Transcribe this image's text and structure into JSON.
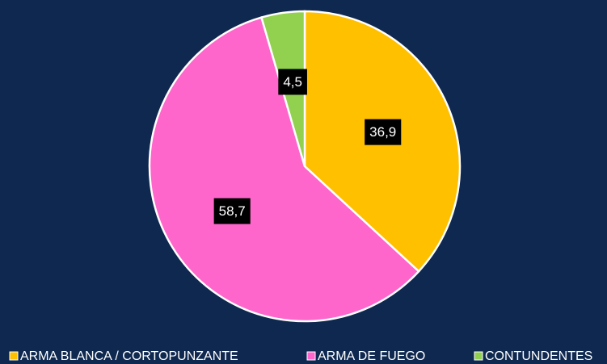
{
  "chart_data": {
    "type": "pie",
    "categories": [
      "ARMA BLANCA / CORTOPUNZANTE",
      "ARMA DE FUEGO",
      "CONTUNDENTES"
    ],
    "values": [
      36.9,
      58.7,
      4.5
    ],
    "value_labels": [
      "36,9",
      "58,7",
      "4,5"
    ],
    "colors": [
      "#ffc000",
      "#ff66cc",
      "#92d050"
    ],
    "legend": "bottom"
  }
}
